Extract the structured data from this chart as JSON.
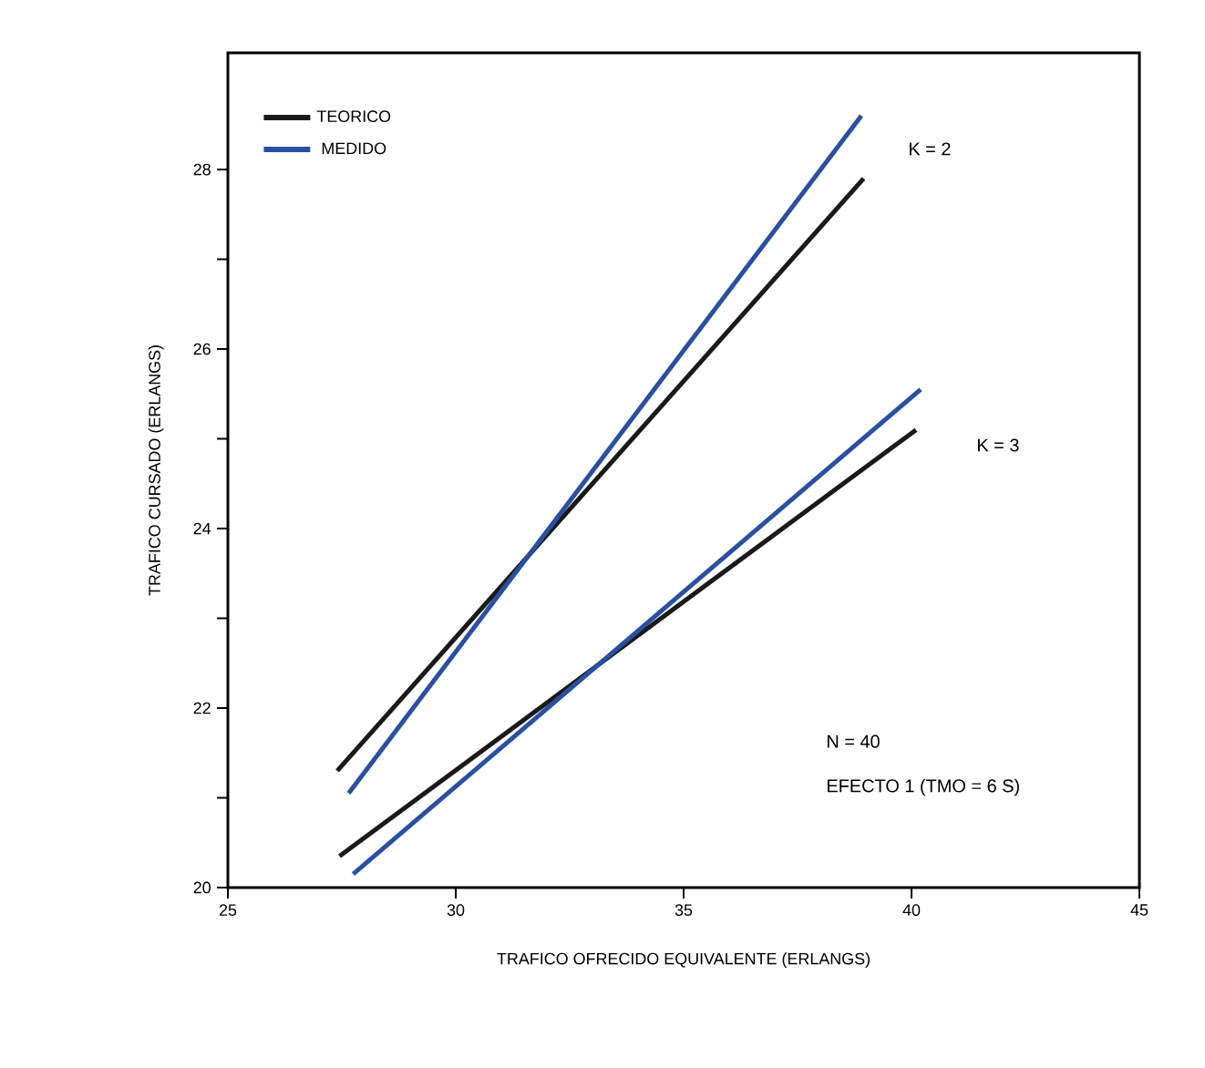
{
  "chart_data": {
    "type": "line",
    "xlabel": "TRAFICO OFRECIDO EQUIVALENTE (ERLANGS)",
    "ylabel": "TRAFICO CURSADO (ERLANGS)",
    "xlim": [
      25,
      45
    ],
    "xticks": [
      25,
      30,
      35,
      40,
      45
    ],
    "ylim": [
      20,
      29.3
    ],
    "yticks": [
      20,
      {
        "value": 21,
        "label": null
      },
      22,
      {
        "value": 23,
        "label": null
      },
      24,
      {
        "value": 25,
        "label": null
      },
      26,
      {
        "value": 27,
        "label": null
      },
      28
    ],
    "legend": "top left",
    "grid": false,
    "marker": "none",
    "line_style": "solid",
    "series": [
      {
        "name": "TEORICO",
        "color": "#1a1a1a",
        "x": [
          27.4,
          38.95
        ],
        "values": [
          21.3,
          27.9
        ]
      },
      {
        "name": "MEDIDO",
        "color": "#2b4fa0",
        "x": [
          27.65,
          38.9
        ],
        "values": [
          21.05,
          28.6
        ]
      },
      {
        "color": "#1a1a1a",
        "x": [
          27.45,
          40.1
        ],
        "values": [
          20.35,
          25.1
        ]
      },
      {
        "color": "#2b4fa0",
        "x": [
          27.75,
          40.2
        ],
        "values": [
          20.15,
          25.55
        ]
      }
    ],
    "annotations": [
      "K = 2",
      "K = 3",
      "N = 40",
      "EFECTO 1 (TMO = 6 S)"
    ]
  }
}
